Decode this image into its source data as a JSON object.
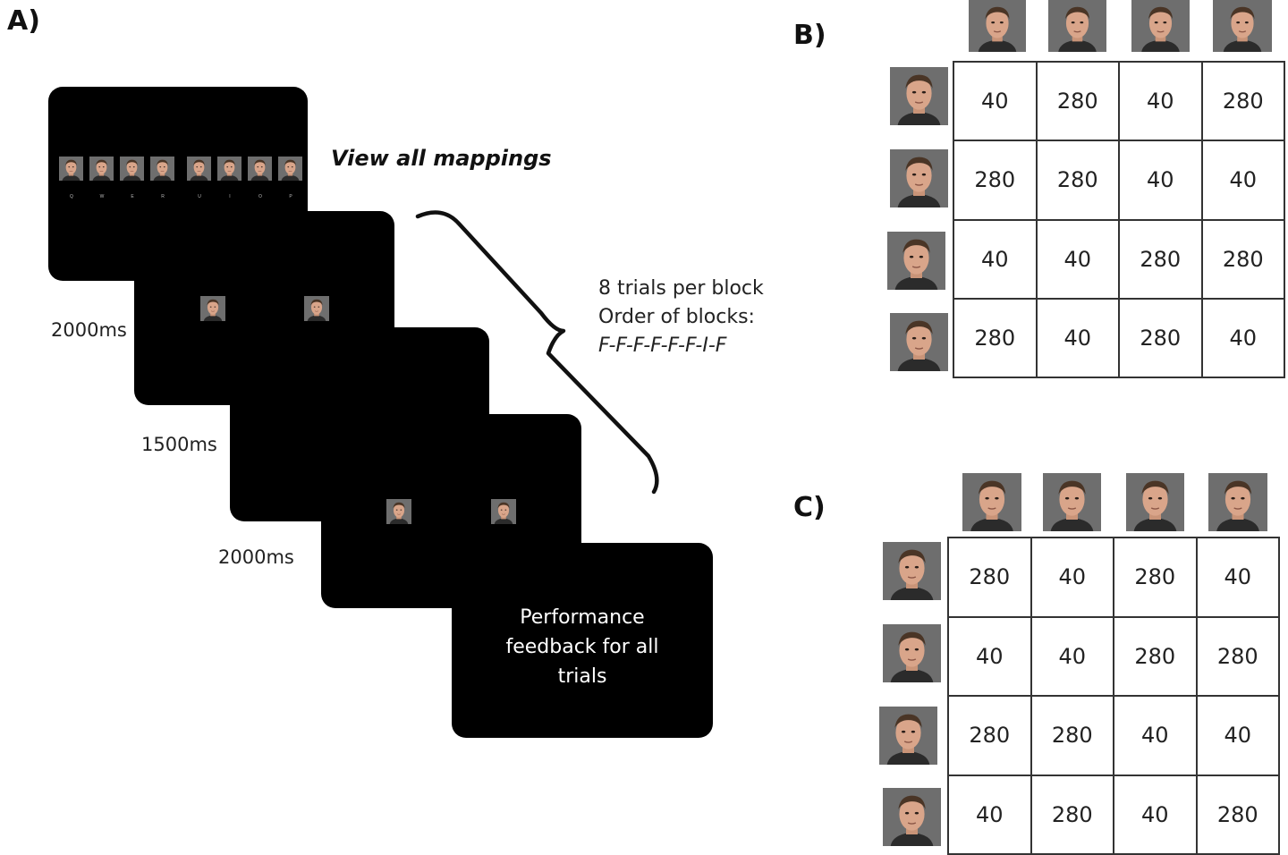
{
  "panels": {
    "a": {
      "letter": "A)"
    },
    "b": {
      "letter": "B)"
    },
    "c": {
      "letter": "C)"
    }
  },
  "procedure": {
    "view_all_label": "View all mappings",
    "mapping_keys": [
      "Q",
      "W",
      "E",
      "R",
      "U",
      "I",
      "O",
      "P"
    ],
    "timings": [
      "2000ms",
      "1500ms",
      "2000ms"
    ],
    "feedback_lines": [
      "Performance",
      "feedback for all",
      "trials"
    ],
    "block_note_lines": [
      "8 trials per block",
      "Order of blocks:"
    ],
    "block_order": "F-F-F-F-F-F-I-F"
  },
  "matrix_b": {
    "rows": [
      [
        "40",
        "280",
        "40",
        "280"
      ],
      [
        "280",
        "280",
        "40",
        "40"
      ],
      [
        "40",
        "40",
        "280",
        "280"
      ],
      [
        "280",
        "40",
        "280",
        "40"
      ]
    ]
  },
  "matrix_c": {
    "rows": [
      [
        "280",
        "40",
        "280",
        "40"
      ],
      [
        "40",
        "40",
        "280",
        "280"
      ],
      [
        "280",
        "280",
        "40",
        "40"
      ],
      [
        "40",
        "280",
        "40",
        "280"
      ]
    ]
  },
  "colors": {
    "screen": "#000000",
    "face_background": "#6e6e6e",
    "skin": "#d9a58a",
    "hair": "#4a3526",
    "shirt": "#2b2b2b"
  }
}
